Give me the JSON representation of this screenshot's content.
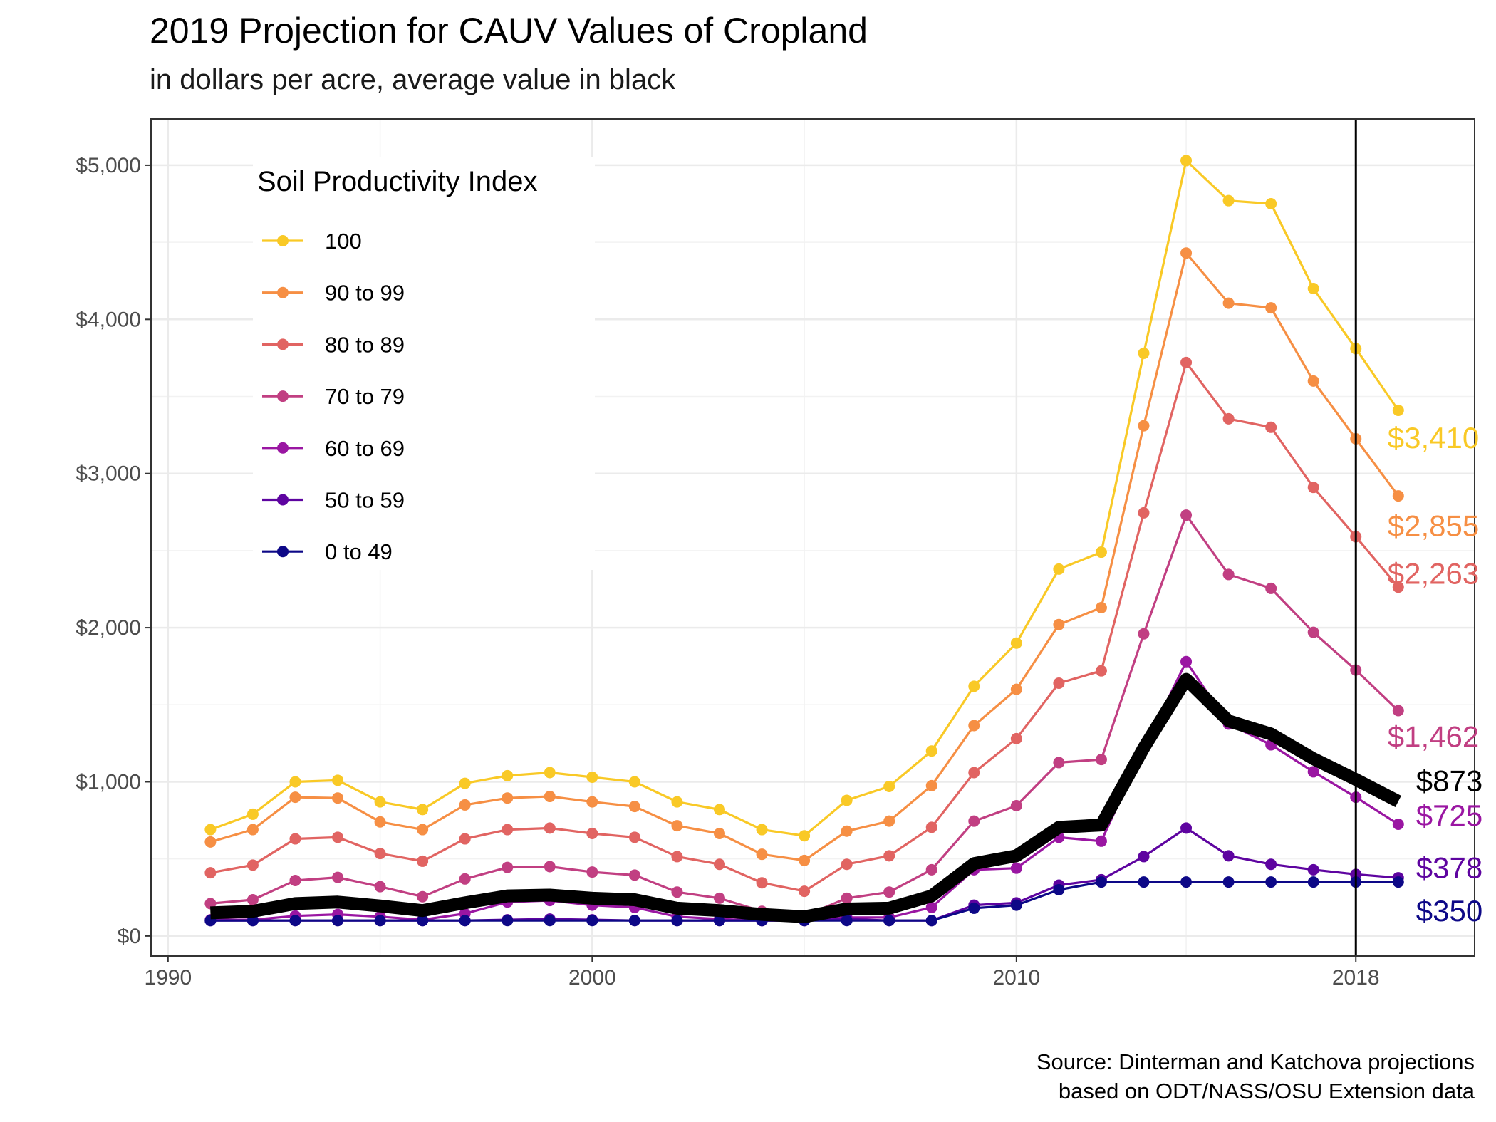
{
  "title": "2019 Projection for CAUV Values of Cropland",
  "subtitle": "in dollars per acre, average value in black",
  "caption_line1": "Source: Dinterman and Katchova projections",
  "caption_line2": "based on ODT/NASS/OSU Extension data",
  "chart_data": {
    "type": "line",
    "xlim": [
      1989.6,
      2020.8
    ],
    "ylim": [
      -130,
      5300
    ],
    "x_ticks": [
      1990,
      2000,
      2010,
      2018
    ],
    "x_tick_labels": [
      "1990",
      "2000",
      "2010",
      "2018"
    ],
    "y_ticks": [
      0,
      1000,
      2000,
      3000,
      4000,
      5000
    ],
    "y_tick_labels": [
      "$0",
      "$1,000",
      "$2,000",
      "$3,000",
      "$4,000",
      "$5,000"
    ],
    "grid": true,
    "vline_x": 2018,
    "legend_title": "Soil Productivity Index",
    "legend_position": "top-left",
    "x": [
      1991,
      1992,
      1993,
      1994,
      1995,
      1996,
      1997,
      1998,
      1999,
      2000,
      2001,
      2002,
      2003,
      2004,
      2005,
      2006,
      2007,
      2008,
      2009,
      2010,
      2011,
      2012,
      2013,
      2014,
      2015,
      2016,
      2017,
      2018,
      2019
    ],
    "series": [
      {
        "name": "100",
        "color": "#F9C926",
        "end_label": "$3,410",
        "values": [
          690,
          790,
          1000,
          1010,
          870,
          820,
          990,
          1040,
          1060,
          1030,
          1000,
          870,
          820,
          690,
          650,
          880,
          970,
          1200,
          1620,
          1900,
          2380,
          2490,
          3780,
          5030,
          4770,
          4750,
          4200,
          3810,
          3410
        ]
      },
      {
        "name": "90 to 99",
        "color": "#F68F44",
        "end_label": "$2,855",
        "values": [
          610,
          690,
          900,
          895,
          740,
          690,
          850,
          895,
          905,
          870,
          840,
          715,
          665,
          530,
          490,
          680,
          745,
          975,
          1365,
          1600,
          2020,
          2130,
          3310,
          4430,
          4105,
          4075,
          3600,
          3225,
          2855
        ]
      },
      {
        "name": "80 to 89",
        "color": "#E16462",
        "end_label": "$2,263",
        "values": [
          410,
          460,
          630,
          640,
          535,
          485,
          630,
          690,
          700,
          665,
          640,
          515,
          465,
          345,
          290,
          465,
          520,
          705,
          1060,
          1280,
          1640,
          1720,
          2745,
          3720,
          3355,
          3300,
          2910,
          2590,
          2263
        ]
      },
      {
        "name": "70 to 79",
        "color": "#C13F82",
        "end_label": "$1,462",
        "values": [
          210,
          235,
          360,
          380,
          320,
          255,
          370,
          445,
          450,
          415,
          395,
          285,
          245,
          160,
          130,
          245,
          285,
          430,
          745,
          845,
          1125,
          1145,
          1960,
          2730,
          2345,
          2255,
          1970,
          1725,
          1462
        ]
      },
      {
        "name": "60 to 69",
        "color": "#9A16A2",
        "end_label": "$725",
        "values": [
          105,
          105,
          130,
          140,
          125,
          105,
          145,
          220,
          230,
          200,
          185,
          125,
          110,
          100,
          100,
          120,
          120,
          185,
          430,
          440,
          640,
          615,
          1215,
          1780,
          1375,
          1240,
          1065,
          900,
          725
        ]
      },
      {
        "name": "50 to 59",
        "color": "#5E04A0",
        "end_label": "$378",
        "values": [
          100,
          100,
          100,
          100,
          100,
          100,
          100,
          105,
          110,
          105,
          100,
          100,
          100,
          100,
          100,
          110,
          100,
          100,
          200,
          215,
          330,
          365,
          515,
          700,
          520,
          465,
          430,
          400,
          378
        ]
      },
      {
        "name": "0 to 49",
        "color": "#0D0887",
        "end_label": "$350",
        "values": [
          100,
          100,
          100,
          100,
          100,
          100,
          100,
          100,
          100,
          100,
          100,
          100,
          100,
          100,
          100,
          100,
          100,
          100,
          180,
          200,
          300,
          350,
          350,
          350,
          350,
          350,
          350,
          350,
          350
        ]
      }
    ],
    "average": {
      "color": "#000000",
      "end_label": "$873",
      "values": [
        150,
        160,
        210,
        220,
        195,
        165,
        215,
        260,
        265,
        245,
        235,
        180,
        165,
        140,
        125,
        175,
        180,
        260,
        470,
        520,
        705,
        720,
        1220,
        1665,
        1395,
        1310,
        1150,
        1015,
        873
      ]
    }
  }
}
